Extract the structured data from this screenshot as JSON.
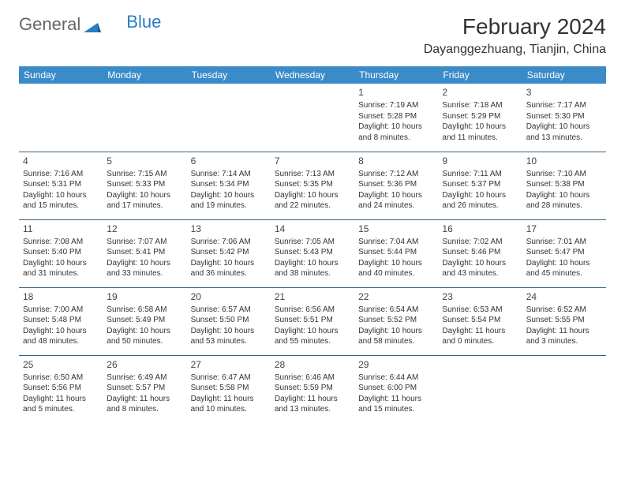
{
  "brand": {
    "part1": "General",
    "part2": "Blue"
  },
  "title": "February 2024",
  "location": "Dayanggezhuang, Tianjin, China",
  "colors": {
    "header_bg": "#3b8bc9",
    "header_text": "#ffffff",
    "border": "#3b5f7a",
    "text": "#333333",
    "brand_blue": "#2b7cc1",
    "brand_gray": "#666666",
    "background": "#ffffff"
  },
  "day_names": [
    "Sunday",
    "Monday",
    "Tuesday",
    "Wednesday",
    "Thursday",
    "Friday",
    "Saturday"
  ],
  "weeks": [
    [
      null,
      null,
      null,
      null,
      {
        "n": "1",
        "sunrise": "7:19 AM",
        "sunset": "5:28 PM",
        "daylight": "10 hours and 8 minutes."
      },
      {
        "n": "2",
        "sunrise": "7:18 AM",
        "sunset": "5:29 PM",
        "daylight": "10 hours and 11 minutes."
      },
      {
        "n": "3",
        "sunrise": "7:17 AM",
        "sunset": "5:30 PM",
        "daylight": "10 hours and 13 minutes."
      }
    ],
    [
      {
        "n": "4",
        "sunrise": "7:16 AM",
        "sunset": "5:31 PM",
        "daylight": "10 hours and 15 minutes."
      },
      {
        "n": "5",
        "sunrise": "7:15 AM",
        "sunset": "5:33 PM",
        "daylight": "10 hours and 17 minutes."
      },
      {
        "n": "6",
        "sunrise": "7:14 AM",
        "sunset": "5:34 PM",
        "daylight": "10 hours and 19 minutes."
      },
      {
        "n": "7",
        "sunrise": "7:13 AM",
        "sunset": "5:35 PM",
        "daylight": "10 hours and 22 minutes."
      },
      {
        "n": "8",
        "sunrise": "7:12 AM",
        "sunset": "5:36 PM",
        "daylight": "10 hours and 24 minutes."
      },
      {
        "n": "9",
        "sunrise": "7:11 AM",
        "sunset": "5:37 PM",
        "daylight": "10 hours and 26 minutes."
      },
      {
        "n": "10",
        "sunrise": "7:10 AM",
        "sunset": "5:38 PM",
        "daylight": "10 hours and 28 minutes."
      }
    ],
    [
      {
        "n": "11",
        "sunrise": "7:08 AM",
        "sunset": "5:40 PM",
        "daylight": "10 hours and 31 minutes."
      },
      {
        "n": "12",
        "sunrise": "7:07 AM",
        "sunset": "5:41 PM",
        "daylight": "10 hours and 33 minutes."
      },
      {
        "n": "13",
        "sunrise": "7:06 AM",
        "sunset": "5:42 PM",
        "daylight": "10 hours and 36 minutes."
      },
      {
        "n": "14",
        "sunrise": "7:05 AM",
        "sunset": "5:43 PM",
        "daylight": "10 hours and 38 minutes."
      },
      {
        "n": "15",
        "sunrise": "7:04 AM",
        "sunset": "5:44 PM",
        "daylight": "10 hours and 40 minutes."
      },
      {
        "n": "16",
        "sunrise": "7:02 AM",
        "sunset": "5:46 PM",
        "daylight": "10 hours and 43 minutes."
      },
      {
        "n": "17",
        "sunrise": "7:01 AM",
        "sunset": "5:47 PM",
        "daylight": "10 hours and 45 minutes."
      }
    ],
    [
      {
        "n": "18",
        "sunrise": "7:00 AM",
        "sunset": "5:48 PM",
        "daylight": "10 hours and 48 minutes."
      },
      {
        "n": "19",
        "sunrise": "6:58 AM",
        "sunset": "5:49 PM",
        "daylight": "10 hours and 50 minutes."
      },
      {
        "n": "20",
        "sunrise": "6:57 AM",
        "sunset": "5:50 PM",
        "daylight": "10 hours and 53 minutes."
      },
      {
        "n": "21",
        "sunrise": "6:56 AM",
        "sunset": "5:51 PM",
        "daylight": "10 hours and 55 minutes."
      },
      {
        "n": "22",
        "sunrise": "6:54 AM",
        "sunset": "5:52 PM",
        "daylight": "10 hours and 58 minutes."
      },
      {
        "n": "23",
        "sunrise": "6:53 AM",
        "sunset": "5:54 PM",
        "daylight": "11 hours and 0 minutes."
      },
      {
        "n": "24",
        "sunrise": "6:52 AM",
        "sunset": "5:55 PM",
        "daylight": "11 hours and 3 minutes."
      }
    ],
    [
      {
        "n": "25",
        "sunrise": "6:50 AM",
        "sunset": "5:56 PM",
        "daylight": "11 hours and 5 minutes."
      },
      {
        "n": "26",
        "sunrise": "6:49 AM",
        "sunset": "5:57 PM",
        "daylight": "11 hours and 8 minutes."
      },
      {
        "n": "27",
        "sunrise": "6:47 AM",
        "sunset": "5:58 PM",
        "daylight": "11 hours and 10 minutes."
      },
      {
        "n": "28",
        "sunrise": "6:46 AM",
        "sunset": "5:59 PM",
        "daylight": "11 hours and 13 minutes."
      },
      {
        "n": "29",
        "sunrise": "6:44 AM",
        "sunset": "6:00 PM",
        "daylight": "11 hours and 15 minutes."
      },
      null,
      null
    ]
  ],
  "labels": {
    "sunrise": "Sunrise:",
    "sunset": "Sunset:",
    "daylight": "Daylight:"
  }
}
